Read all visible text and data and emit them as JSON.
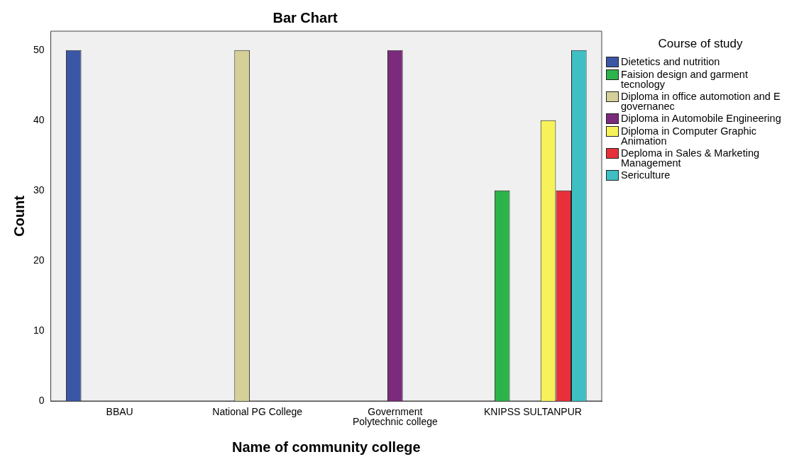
{
  "chart_data": {
    "type": "bar",
    "title": "Bar Chart",
    "xlabel": "Name of community college",
    "ylabel": "Count",
    "legend_title": "Course of study",
    "legend": "right",
    "categories": [
      "BBAU",
      "National PG College",
      "Government Polytechnic college",
      "KNIPSS SULTANPUR"
    ],
    "ylim": [
      0,
      52.7
    ],
    "yticks": [
      0,
      10,
      20,
      30,
      40,
      50
    ],
    "grid": false,
    "series": [
      {
        "name": "Dietetics and nutrition",
        "color": "#3c56a6",
        "values": [
          50,
          null,
          null,
          null
        ]
      },
      {
        "name": "Faision design and garment tecnology",
        "color": "#2cb34a",
        "values": [
          null,
          null,
          null,
          30
        ]
      },
      {
        "name": "Diploma in office automotion and E governanec",
        "color": "#d5cf98",
        "values": [
          null,
          50,
          null,
          null
        ]
      },
      {
        "name": "Diploma in Automobile Engineering",
        "color": "#7b2a7c",
        "values": [
          null,
          null,
          50,
          null
        ]
      },
      {
        "name": "Diploma in Computer Graphic Animation",
        "color": "#f8f25a",
        "values": [
          null,
          null,
          null,
          40
        ]
      },
      {
        "name": "Deploma in Sales & Marketing Management",
        "color": "#e8303a",
        "values": [
          null,
          null,
          null,
          30
        ]
      },
      {
        "name": "Sericulture",
        "color": "#3fbfc4",
        "values": [
          null,
          null,
          null,
          50
        ]
      }
    ]
  }
}
